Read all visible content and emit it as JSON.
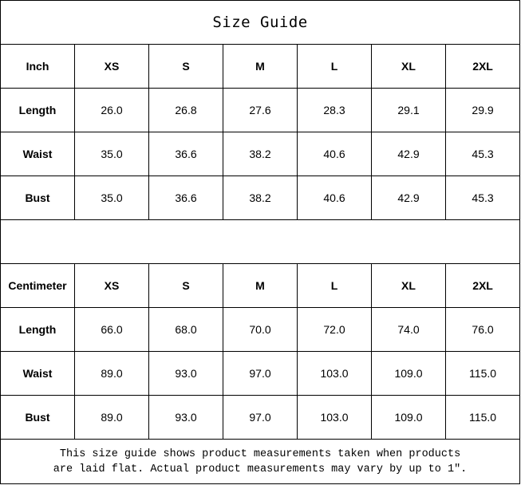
{
  "title": "Size Guide",
  "tables": [
    {
      "unit": "Inch",
      "sizes": [
        "XS",
        "S",
        "M",
        "L",
        "XL",
        "2XL"
      ],
      "rows": [
        {
          "label": "Length",
          "values": [
            "26.0",
            "26.8",
            "27.6",
            "28.3",
            "29.1",
            "29.9"
          ]
        },
        {
          "label": "Waist",
          "values": [
            "35.0",
            "36.6",
            "38.2",
            "40.6",
            "42.9",
            "45.3"
          ]
        },
        {
          "label": "Bust",
          "values": [
            "35.0",
            "36.6",
            "38.2",
            "40.6",
            "42.9",
            "45.3"
          ]
        }
      ]
    },
    {
      "unit": "Centimeter",
      "sizes": [
        "XS",
        "S",
        "M",
        "L",
        "XL",
        "2XL"
      ],
      "rows": [
        {
          "label": "Length",
          "values": [
            "66.0",
            "68.0",
            "70.0",
            "72.0",
            "74.0",
            "76.0"
          ]
        },
        {
          "label": "Waist",
          "values": [
            "89.0",
            "93.0",
            "97.0",
            "103.0",
            "109.0",
            "115.0"
          ]
        },
        {
          "label": "Bust",
          "values": [
            "89.0",
            "93.0",
            "97.0",
            "103.0",
            "109.0",
            "115.0"
          ]
        }
      ]
    }
  ],
  "note": {
    "line1": "This size guide shows product measurements taken when products",
    "line2": "are laid flat. Actual product measurements may vary by up to 1″."
  }
}
